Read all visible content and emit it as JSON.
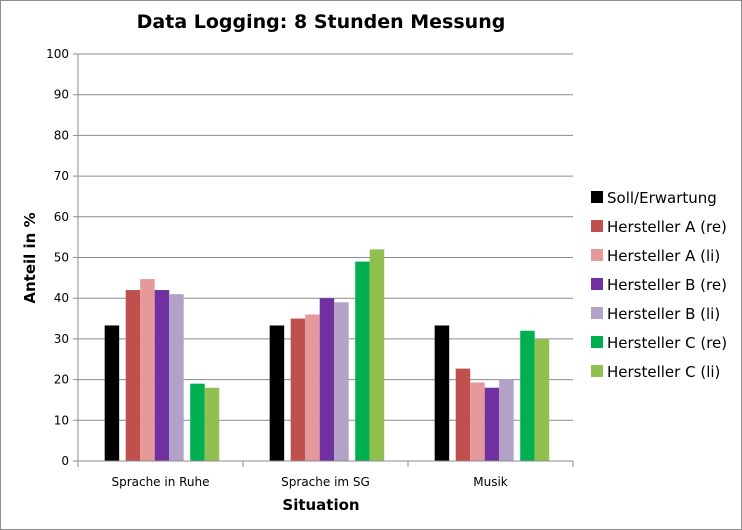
{
  "chart_data": {
    "type": "bar",
    "title": "Data Logging: 8 Stunden Messung",
    "xlabel": "Situation",
    "ylabel": "Anteil in %",
    "ylim": [
      0,
      100
    ],
    "yticks": [
      "0",
      "10",
      "20",
      "30",
      "40",
      "50",
      "60",
      "70",
      "80",
      "90",
      "100"
    ],
    "grid": true,
    "legend_position": "right",
    "categories": [
      "Sprache in Ruhe",
      "Sprache im SG",
      "Musik"
    ],
    "series": [
      {
        "name": "Soll/Erwartung",
        "color": "#000000",
        "values": [
          33.3,
          33.3,
          33.3
        ]
      },
      {
        "name": "Hersteller A (re)",
        "color": "#c0504d",
        "values": [
          42,
          35,
          22.7
        ]
      },
      {
        "name": "Hersteller A (li)",
        "color": "#e6999a",
        "values": [
          44.7,
          36,
          19.3
        ]
      },
      {
        "name": "Hersteller B (re)",
        "color": "#7030a0",
        "values": [
          42,
          40,
          18
        ]
      },
      {
        "name": "Hersteller B (li)",
        "color": "#b3a2c7",
        "values": [
          41,
          39,
          20
        ]
      },
      {
        "name": "Hersteller C (re)",
        "color": "#00b050",
        "values": [
          19,
          49,
          32
        ]
      },
      {
        "name": "Hersteller C (li)",
        "color": "#92c050",
        "values": [
          18,
          52,
          30
        ]
      }
    ]
  }
}
